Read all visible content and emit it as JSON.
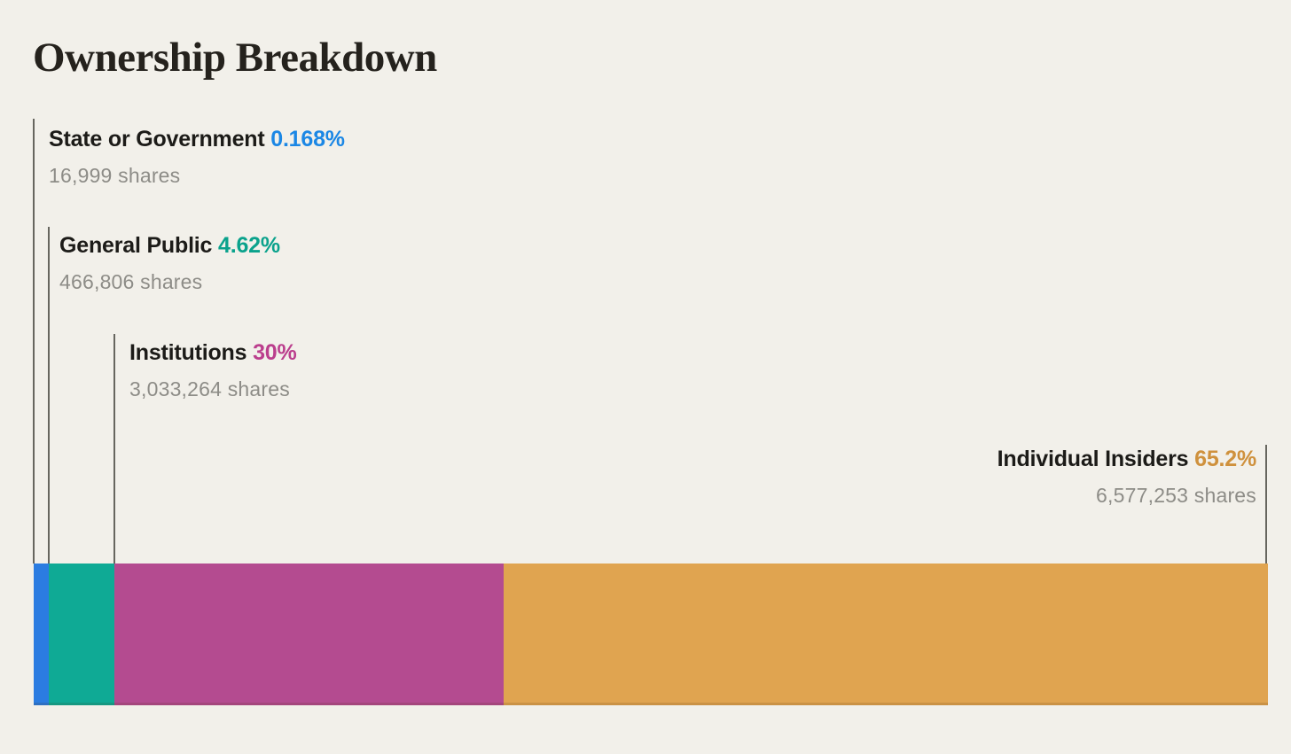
{
  "header": {
    "title": "Ownership Breakdown"
  },
  "chart_data": {
    "type": "bar",
    "variant": "horizontal-stacked-single-bar",
    "title": "Ownership Breakdown",
    "background": "#f2f0ea",
    "grid": false,
    "legend_position": "none",
    "categories": [
      "State or Government",
      "General Public",
      "Institutions",
      "Individual Insiders"
    ],
    "values": [
      0.168,
      4.62,
      30,
      65.2
    ],
    "segments": [
      {
        "label": "State or Government",
        "percent": 0.168,
        "percent_label": "0.168%",
        "shares": 16999,
        "shares_label": "16,999 shares",
        "bar_color": "#2b7ce1",
        "accent_color": "#1b87e5"
      },
      {
        "label": "General Public",
        "percent": 4.62,
        "percent_label": "4.62%",
        "shares": 466806,
        "shares_label": "466,806 shares",
        "bar_color": "#0faa95",
        "accent_color": "#0aa28c"
      },
      {
        "label": "Institutions",
        "percent": 30,
        "percent_label": "30%",
        "shares": 3033264,
        "shares_label": "3,033,264 shares",
        "bar_color": "#b44b90",
        "accent_color": "#bb3e8d"
      },
      {
        "label": "Individual Insiders",
        "percent": 65.2,
        "percent_label": "65.2%",
        "shares": 6577253,
        "shares_label": "6,577,253 shares",
        "bar_color": "#e0a450",
        "accent_color": "#cf913d"
      }
    ],
    "render_widths_pct": [
      1.22,
      5.32,
      31.54,
      61.92
    ]
  }
}
